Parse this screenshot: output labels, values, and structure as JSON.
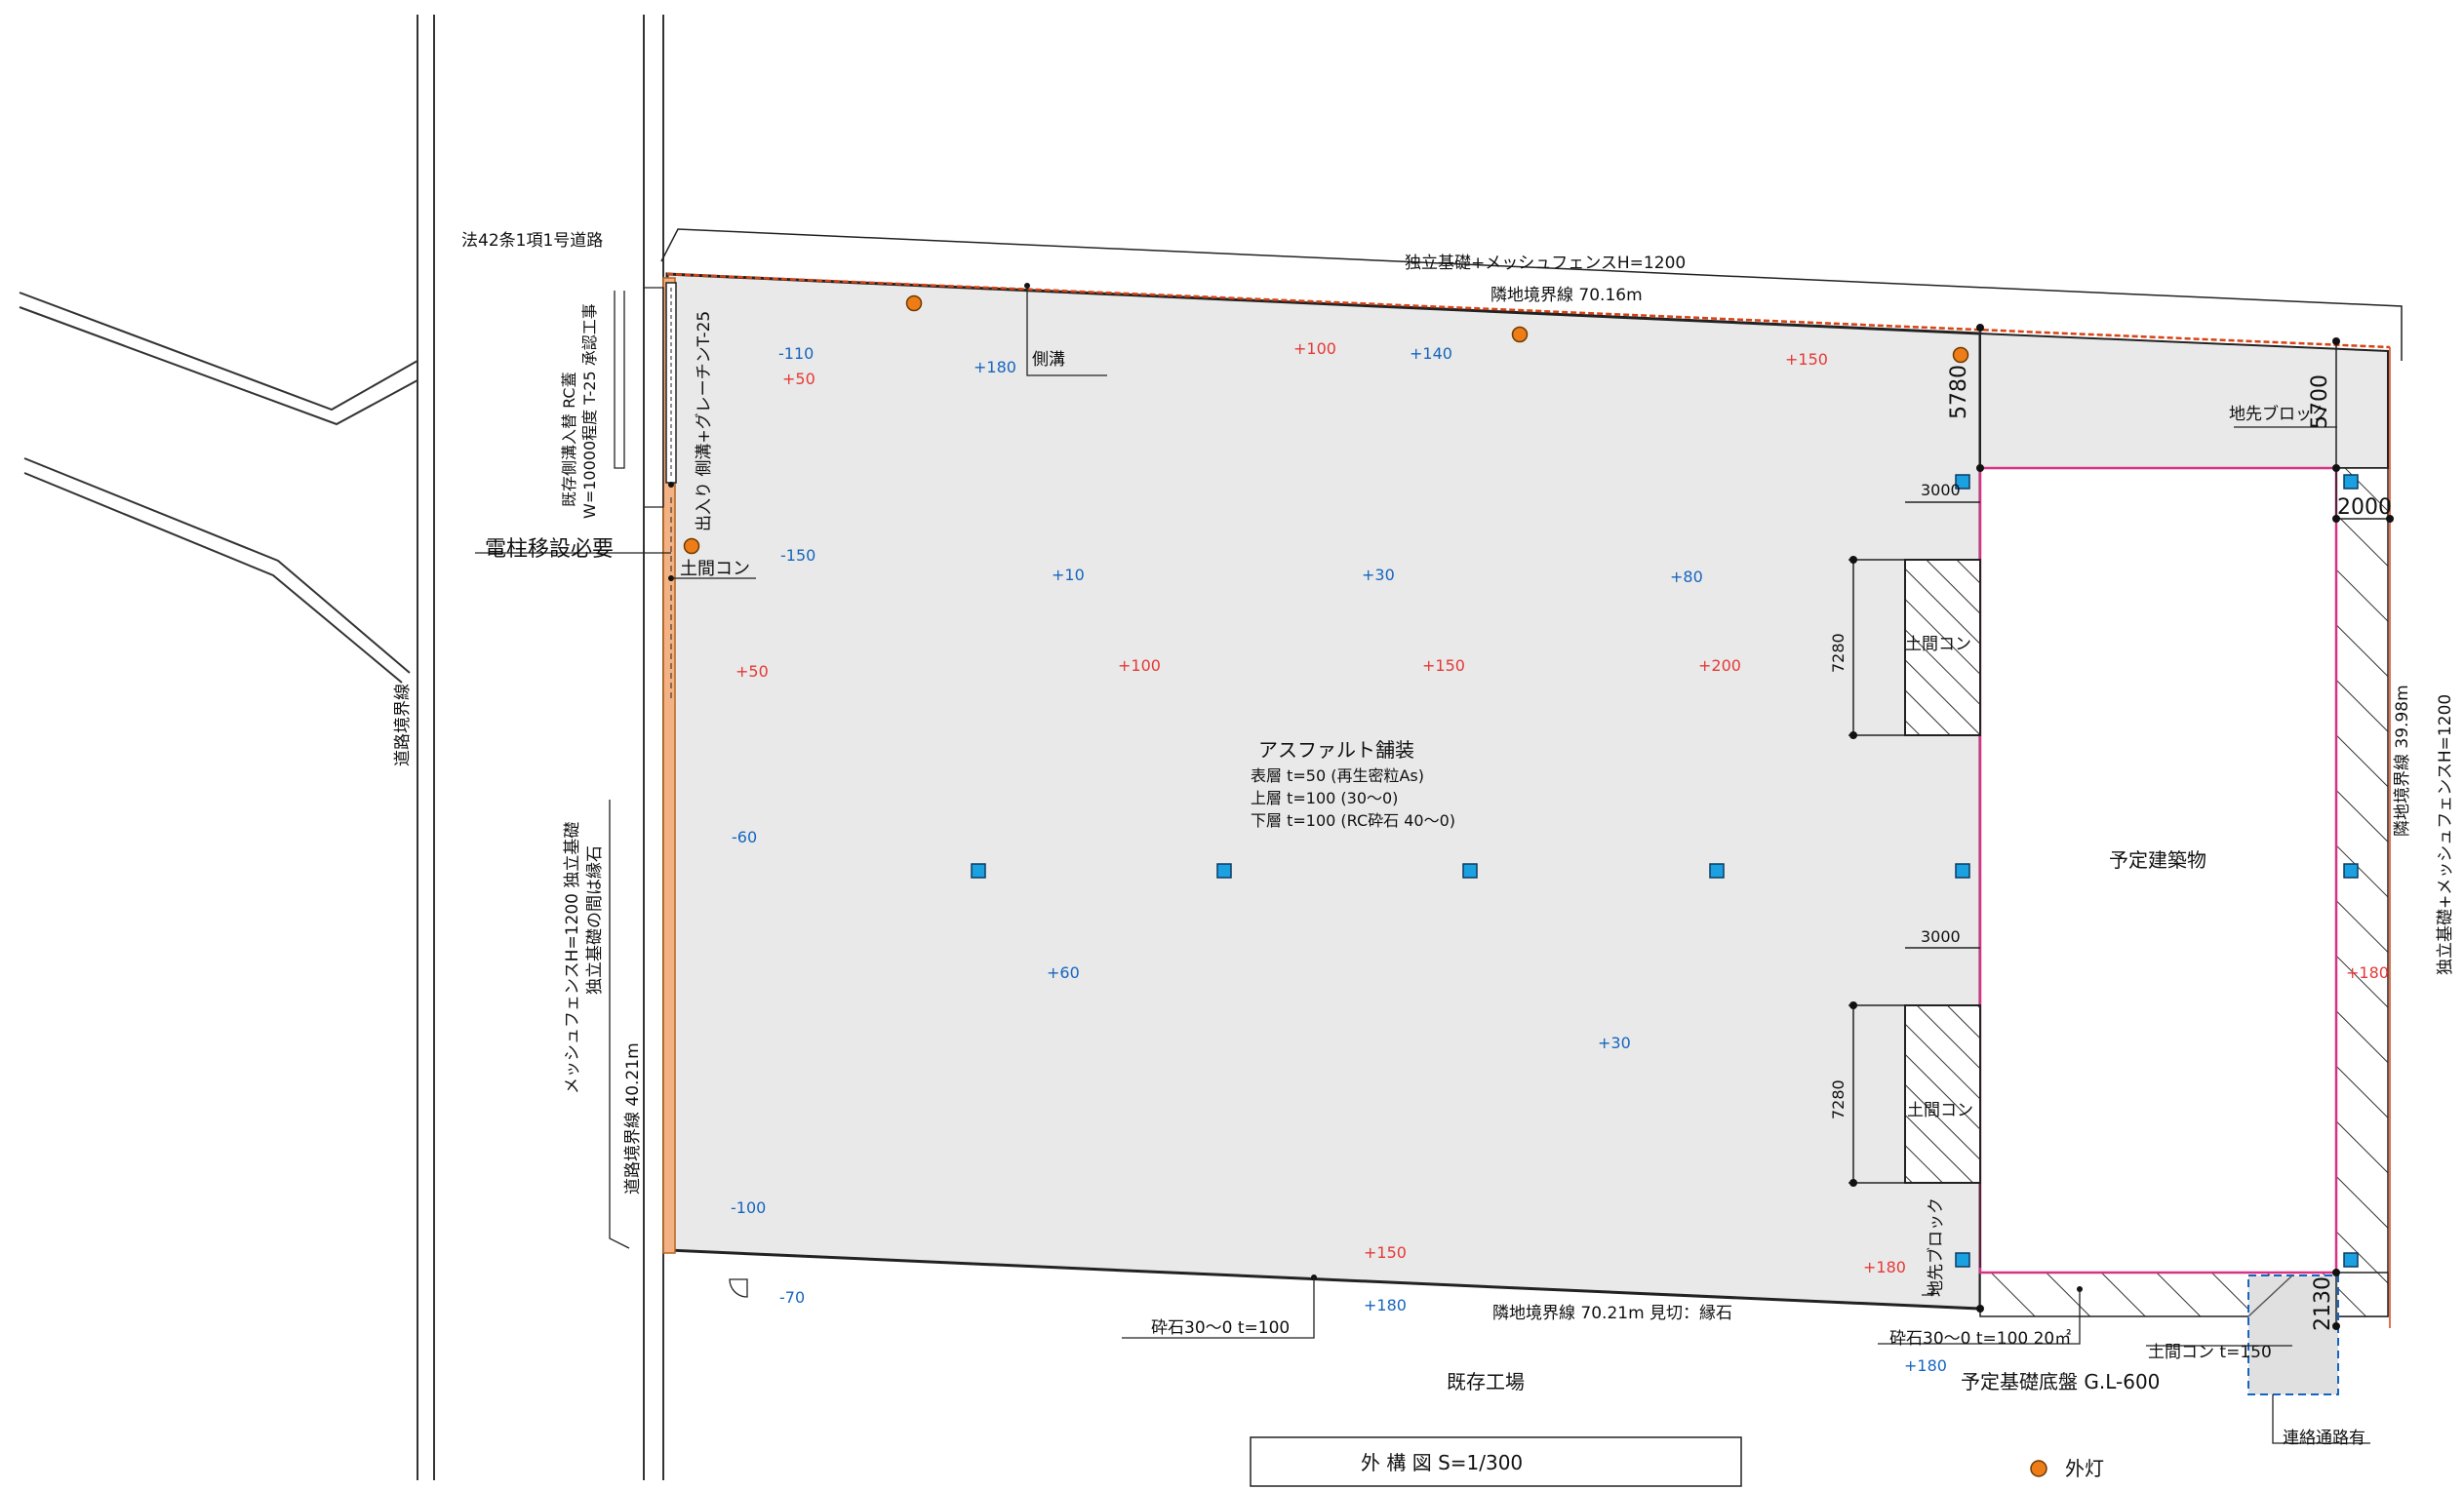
{
  "road": {
    "label": "法42条1項1号道路",
    "boundary_label": "道路境界線"
  },
  "fences": {
    "north": "独立基礎+メッシュフェンスH=1200",
    "east": "独立基礎+メッシュフェンスH=1200",
    "west_1": "メッシュフェンスH=1200 独立基礎",
    "west_2": "独立基礎の間は縁石"
  },
  "boundaries": {
    "north": "隣地境界線 70.16m",
    "east": "隣地境界線 39.98m",
    "south": "隣地境界線 70.21m 見切：縁石",
    "west": "道路境界線 40.21m"
  },
  "entrance": {
    "existing_1": "既存側溝入替 RC蓋",
    "existing_2": "W=10000程度 T-25 承認工事",
    "entrance_label": "出入り 側溝+グレーチンT-25",
    "pole": "電柱移設必要",
    "doma": "土間コン"
  },
  "gutter": "側溝",
  "paving": {
    "title": "アスファルト舗装",
    "layer1": "表層 t=50 (再生密粒As)",
    "layer2": "上層 t=100 (30〜0)",
    "layer3": "下層 t=100 (RC砕石 40〜0)"
  },
  "building": {
    "label": "予定建築物",
    "foundation": "予定基礎底盤 G.L-600",
    "curb_block_north": "地先ブロック",
    "curb_block_west": "地先ブロック",
    "gravel_south": "砕石30〜0 t=100 20㎡",
    "doma_south": "土間コン t=150",
    "connection": "連絡通路有"
  },
  "slabs": [
    {
      "label": "土間コン",
      "width": "3000",
      "length": "7280"
    },
    {
      "label": "土間コン",
      "width": "3000",
      "length": "7280"
    }
  ],
  "dimensions": {
    "north_left": "5780",
    "north_right": "5700",
    "east_gap": "2000",
    "south_gap": "2130"
  },
  "gravel_south": "砕石30〜0 t=100",
  "factory": "既存工場",
  "title_block": "外 構 図 S=1/300",
  "legend": {
    "light": "外灯",
    "light_color": "#ef7d17",
    "post_color": "#1ba1e2"
  },
  "levels": {
    "blue": [
      "-110",
      "+180",
      "+140",
      "-150",
      "+10",
      "+30",
      "+80",
      "-60",
      "+60",
      "+30",
      "-100",
      "-70",
      "+180",
      "+180"
    ],
    "red": [
      "+50",
      "+100",
      "+150",
      "+50",
      "+100",
      "+150",
      "+200",
      "+150",
      "+180",
      "+180"
    ]
  }
}
